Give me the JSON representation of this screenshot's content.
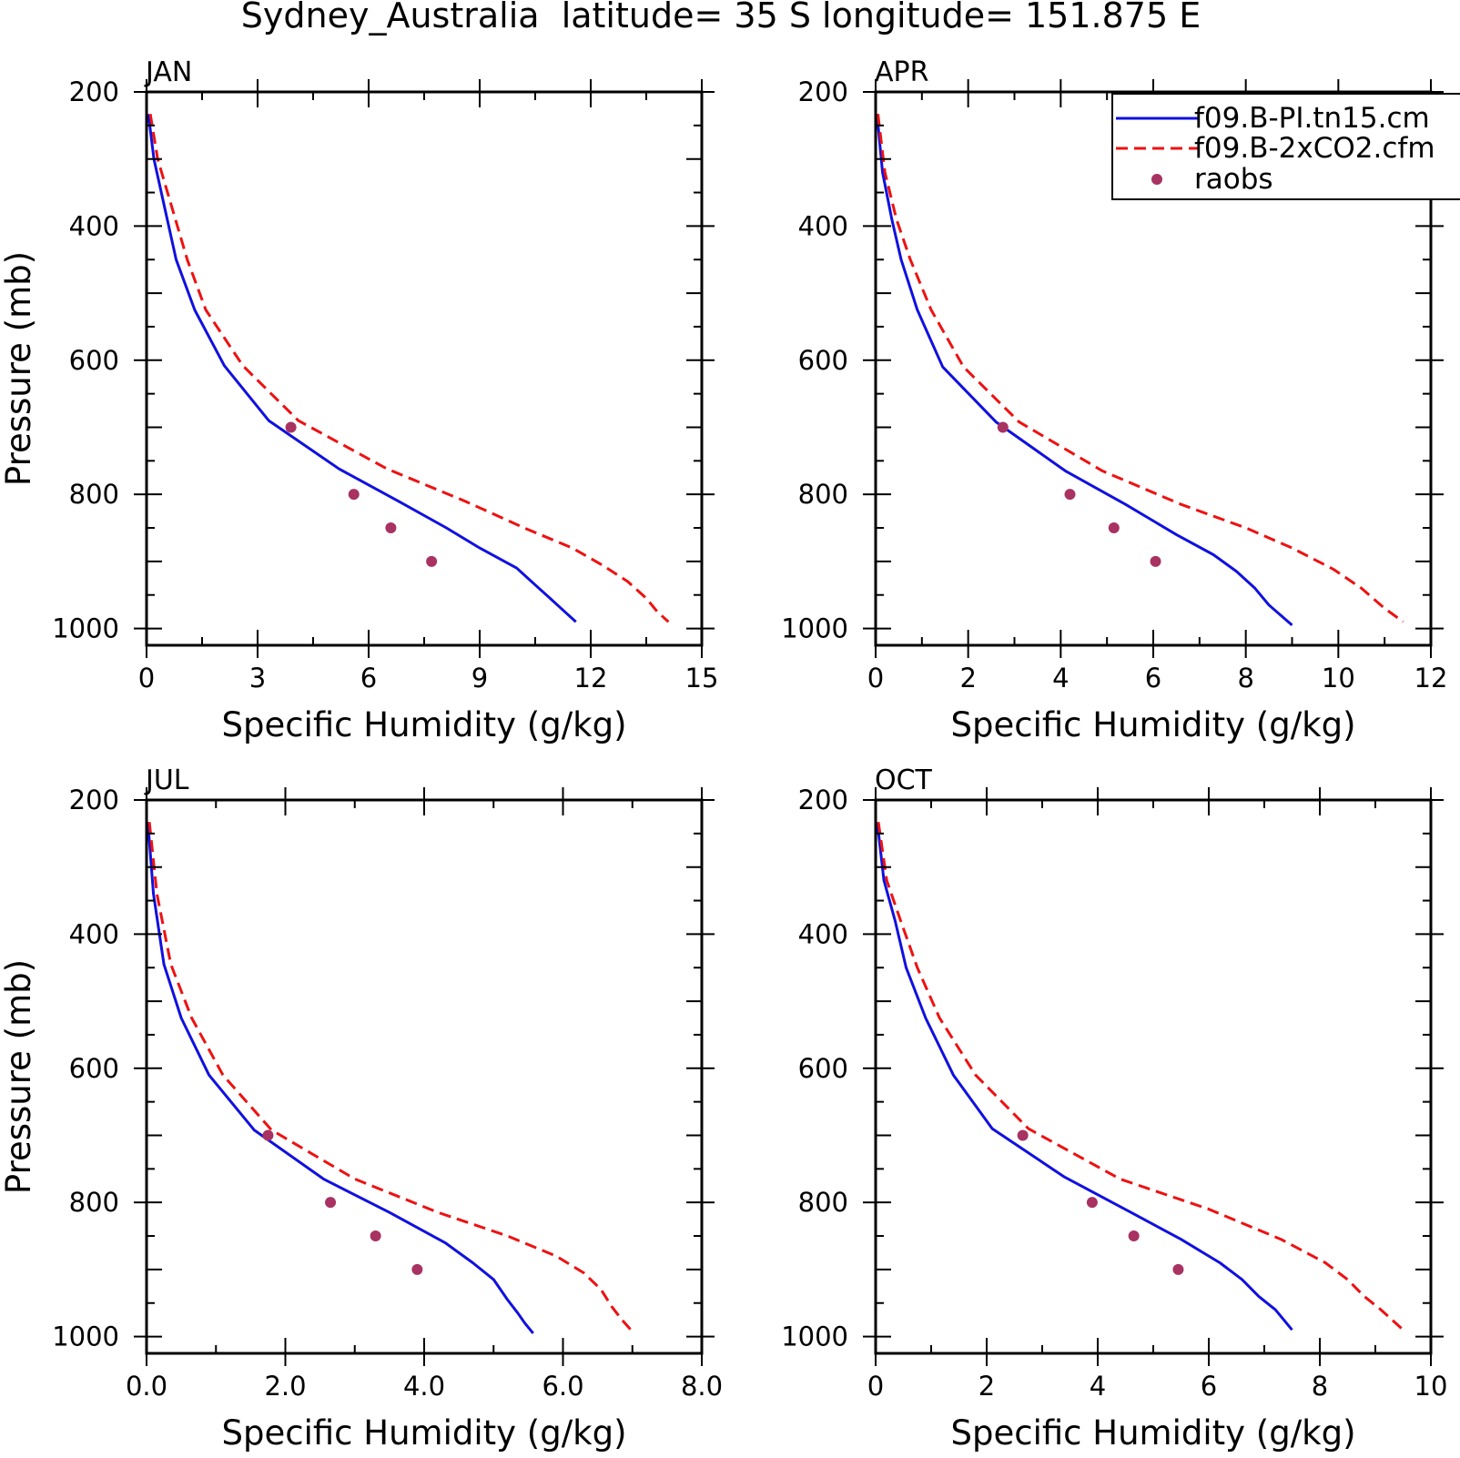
{
  "figure_title": "Sydney_Australia  latitude= 35 S longitude= 151.875 E",
  "colors": {
    "pi_line": "#1010e0",
    "co2_line": "#ee1111",
    "raobs": "#a83262",
    "axis": "#000000"
  },
  "legend": {
    "items": [
      {
        "label": "f09.B-PI.tn15.cm",
        "style": "solid-line",
        "color": "#1010e0"
      },
      {
        "label": "f09.B-2xCO2.cfm",
        "style": "dashed-line",
        "color": "#ee1111"
      },
      {
        "label": "raobs",
        "style": "dot",
        "color": "#a83262"
      }
    ]
  },
  "chart_data": [
    {
      "type": "line",
      "panel_label": "JAN",
      "xlabel": "Specific Humidity (g/kg)",
      "ylabel": "Pressure (mb)",
      "xlim": [
        0,
        15
      ],
      "xticks": [
        0,
        3,
        6,
        9,
        12,
        15
      ],
      "xtick_labels": [
        "0",
        "3",
        "6",
        "9",
        "12",
        "15"
      ],
      "ylim": [
        1025,
        200
      ],
      "yticks": [
        200,
        400,
        600,
        800,
        1000
      ],
      "y_reversed": true,
      "legend_position": "none",
      "series": [
        {
          "name": "f09.B-PI.tn15.cm",
          "kind": "solid-line",
          "x": [
            0.05,
            0.2,
            0.5,
            0.8,
            1.3,
            2.1,
            3.3,
            5.2,
            6.8,
            8.1,
            9.0,
            10.0,
            10.5,
            10.9,
            11.3,
            11.6
          ],
          "y": [
            233,
            300,
            375,
            450,
            525,
            608,
            690,
            762,
            810,
            850,
            880,
            910,
            935,
            955,
            975,
            990
          ]
        },
        {
          "name": "f09.B-2xCO2.cfm",
          "kind": "dashed-line",
          "x": [
            0.1,
            0.3,
            0.7,
            1.1,
            1.6,
            2.6,
            4.1,
            6.5,
            8.6,
            10.2,
            11.5,
            12.3,
            13.0,
            13.5,
            13.8,
            14.1
          ],
          "y": [
            233,
            300,
            375,
            450,
            525,
            608,
            690,
            762,
            810,
            850,
            880,
            905,
            930,
            955,
            975,
            990
          ]
        },
        {
          "name": "raobs",
          "kind": "points",
          "x": [
            3.9,
            5.6,
            6.6,
            7.7
          ],
          "y": [
            700,
            800,
            850,
            900
          ]
        }
      ]
    },
    {
      "type": "line",
      "panel_label": "APR",
      "xlabel": "Specific Humidity (g/kg)",
      "ylabel": "",
      "xlim": [
        0,
        12
      ],
      "xticks": [
        0,
        2,
        4,
        6,
        8,
        10,
        12
      ],
      "xtick_labels": [
        "0",
        "2",
        "4",
        "6",
        "8",
        "10",
        "12"
      ],
      "ylim": [
        1025,
        200
      ],
      "yticks": [
        200,
        400,
        600,
        800,
        1000
      ],
      "y_reversed": true,
      "legend_position": "top-right",
      "series": [
        {
          "name": "f09.B-PI.tn15.cm",
          "kind": "solid-line",
          "x": [
            0.03,
            0.15,
            0.35,
            0.55,
            0.9,
            1.45,
            2.6,
            4.1,
            5.4,
            6.5,
            7.3,
            7.8,
            8.2,
            8.5,
            9.0
          ],
          "y": [
            233,
            320,
            390,
            450,
            525,
            610,
            692,
            765,
            815,
            860,
            890,
            915,
            940,
            965,
            995
          ]
        },
        {
          "name": "f09.B-2xCO2.cfm",
          "kind": "dashed-line",
          "x": [
            0.05,
            0.2,
            0.45,
            0.75,
            1.2,
            1.9,
            3.1,
            4.9,
            6.6,
            8.0,
            9.0,
            9.9,
            10.5,
            11.0,
            11.4
          ],
          "y": [
            233,
            320,
            390,
            450,
            525,
            610,
            692,
            765,
            815,
            850,
            880,
            912,
            940,
            970,
            990
          ]
        },
        {
          "name": "raobs",
          "kind": "points",
          "x": [
            2.75,
            4.2,
            5.15,
            6.05
          ],
          "y": [
            700,
            800,
            850,
            900
          ]
        }
      ]
    },
    {
      "type": "line",
      "panel_label": "JUL",
      "xlabel": "Specific Humidity (g/kg)",
      "ylabel": "Pressure (mb)",
      "xlim": [
        0,
        8
      ],
      "xticks": [
        0,
        2,
        4,
        6,
        8
      ],
      "xtick_labels": [
        "0.0",
        "2.0",
        "4.0",
        "6.0",
        "8.0"
      ],
      "ylim": [
        1025,
        200
      ],
      "yticks": [
        200,
        400,
        600,
        800,
        1000
      ],
      "y_reversed": true,
      "legend_position": "none",
      "series": [
        {
          "name": "f09.B-PI.tn15.cm",
          "kind": "solid-line",
          "x": [
            0.02,
            0.1,
            0.25,
            0.5,
            0.9,
            1.55,
            2.55,
            3.5,
            4.3,
            4.7,
            5.0,
            5.2,
            5.35,
            5.45,
            5.57
          ],
          "y": [
            233,
            340,
            445,
            525,
            610,
            692,
            765,
            815,
            860,
            890,
            915,
            945,
            965,
            980,
            995
          ]
        },
        {
          "name": "f09.B-2xCO2.cfm",
          "kind": "dashed-line",
          "x": [
            0.04,
            0.15,
            0.35,
            0.65,
            1.1,
            1.8,
            3.0,
            4.2,
            5.2,
            5.9,
            6.3,
            6.55,
            6.7,
            6.85,
            7.02
          ],
          "y": [
            233,
            340,
            445,
            525,
            610,
            692,
            765,
            815,
            850,
            880,
            905,
            930,
            955,
            975,
            995
          ]
        },
        {
          "name": "raobs",
          "kind": "points",
          "x": [
            1.75,
            2.65,
            3.3,
            3.9
          ],
          "y": [
            700,
            800,
            850,
            900
          ]
        }
      ]
    },
    {
      "type": "line",
      "panel_label": "OCT",
      "xlabel": "Specific Humidity (g/kg)",
      "ylabel": "",
      "xlim": [
        0,
        10
      ],
      "xticks": [
        0,
        2,
        4,
        6,
        8,
        10
      ],
      "xtick_labels": [
        "0",
        "2",
        "4",
        "6",
        "8",
        "10"
      ],
      "ylim": [
        1025,
        200
      ],
      "yticks": [
        200,
        400,
        600,
        800,
        1000
      ],
      "y_reversed": true,
      "legend_position": "none",
      "series": [
        {
          "name": "f09.B-PI.tn15.cm",
          "kind": "solid-line",
          "x": [
            0.03,
            0.15,
            0.35,
            0.55,
            0.9,
            1.4,
            2.1,
            3.4,
            4.6,
            5.5,
            6.2,
            6.6,
            6.9,
            7.2,
            7.5
          ],
          "y": [
            233,
            320,
            380,
            450,
            525,
            610,
            690,
            762,
            815,
            855,
            890,
            915,
            940,
            960,
            990
          ]
        },
        {
          "name": "f09.B-2xCO2.cfm",
          "kind": "dashed-line",
          "x": [
            0.05,
            0.2,
            0.45,
            0.75,
            1.15,
            1.8,
            2.75,
            4.4,
            6.0,
            7.3,
            8.1,
            8.5,
            8.8,
            9.1,
            9.5
          ],
          "y": [
            233,
            320,
            380,
            450,
            525,
            610,
            690,
            765,
            810,
            855,
            890,
            915,
            940,
            960,
            990
          ]
        },
        {
          "name": "raobs",
          "kind": "points",
          "x": [
            2.65,
            3.9,
            4.65,
            5.45
          ],
          "y": [
            700,
            800,
            850,
            900
          ]
        }
      ]
    }
  ]
}
